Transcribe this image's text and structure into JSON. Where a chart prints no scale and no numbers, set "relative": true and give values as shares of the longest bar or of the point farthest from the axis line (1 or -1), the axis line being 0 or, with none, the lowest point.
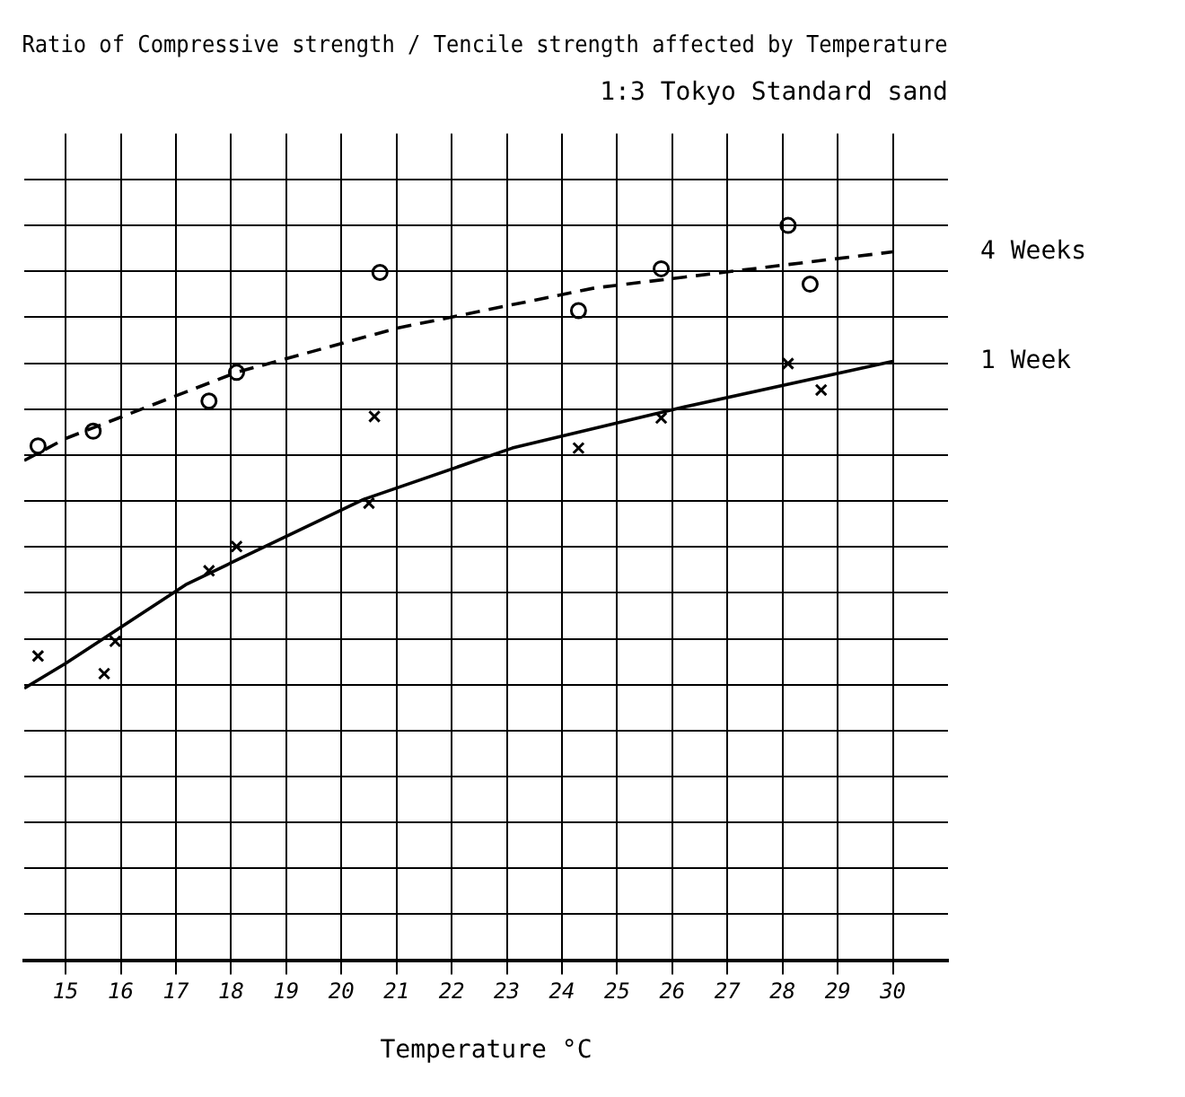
{
  "chart_data": {
    "type": "line",
    "title": "Ratio of Compressive strength / Tencile strength affected by Temperature",
    "subtitle": "1:3 Tokyo Standard sand",
    "xlabel": "Temperature °C",
    "relative": true,
    "xlim": [
      14.25,
      31
    ],
    "xticks": [
      15,
      16,
      17,
      18,
      19,
      20,
      21,
      22,
      23,
      24,
      25,
      26,
      27,
      28,
      29,
      30
    ],
    "grid": true,
    "legend": false,
    "series": [
      {
        "name": "4 Weeks",
        "type": "line",
        "line_style": "dashed",
        "marker": "none",
        "color": "#000000",
        "x": [
          14.25,
          15,
          18.1,
          21,
          24.6,
          30
        ],
        "values": [
          0.68,
          0.71,
          0.8,
          0.86,
          0.915,
          0.964
        ]
      },
      {
        "type": "scatter",
        "marker": "circle",
        "color": "#000000",
        "x": [
          14.5,
          15.5,
          17.6,
          18.1,
          20.7,
          24.3,
          25.8,
          28.1,
          28.5
        ],
        "values": [
          0.7,
          0.72,
          0.761,
          0.8,
          0.936,
          0.884,
          0.941,
          1.0,
          0.92
        ]
      },
      {
        "name": "1 Week",
        "type": "line",
        "line_style": "solid",
        "marker": "none",
        "color": "#000000",
        "x": [
          14.25,
          15,
          17.2,
          20.4,
          23.1,
          26.1,
          30
        ],
        "values": [
          0.37,
          0.404,
          0.512,
          0.627,
          0.697,
          0.751,
          0.815
        ]
      },
      {
        "type": "scatter",
        "marker": "cross",
        "color": "#000000",
        "x": [
          14.5,
          15.7,
          15.9,
          17.6,
          18.1,
          20.5,
          20.6,
          24.3,
          25.8,
          28.1,
          28.7
        ],
        "values": [
          0.414,
          0.39,
          0.434,
          0.53,
          0.563,
          0.622,
          0.74,
          0.697,
          0.738,
          0.812,
          0.776
        ]
      }
    ]
  }
}
